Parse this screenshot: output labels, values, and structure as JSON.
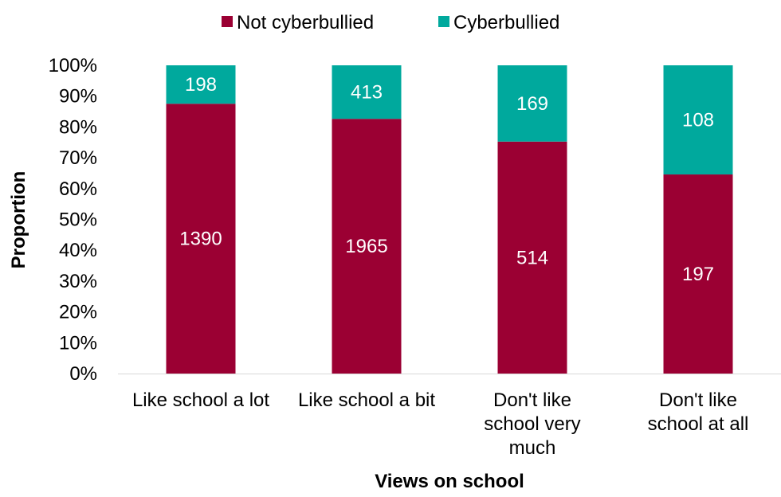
{
  "chart_data": {
    "type": "bar",
    "stacked": "percent",
    "categories": [
      [
        "Like school a lot"
      ],
      [
        "Like school a bit"
      ],
      [
        "Don't like",
        "school very",
        "much"
      ],
      [
        "Don't like",
        "school at all"
      ]
    ],
    "series": [
      {
        "name": "Not cyberbullied",
        "color": "#9B0033",
        "values": [
          1390,
          1965,
          514,
          197
        ]
      },
      {
        "name": "Cyberbullied",
        "color": "#00A99D",
        "values": [
          198,
          413,
          169,
          108
        ]
      }
    ],
    "xlabel": "Views on school",
    "ylabel": "Proportion",
    "ylim": [
      0,
      100
    ],
    "yticks": [
      "0%",
      "10%",
      "20%",
      "30%",
      "40%",
      "50%",
      "60%",
      "70%",
      "80%",
      "90%",
      "100%"
    ],
    "legend_position": "top",
    "grid": false
  }
}
